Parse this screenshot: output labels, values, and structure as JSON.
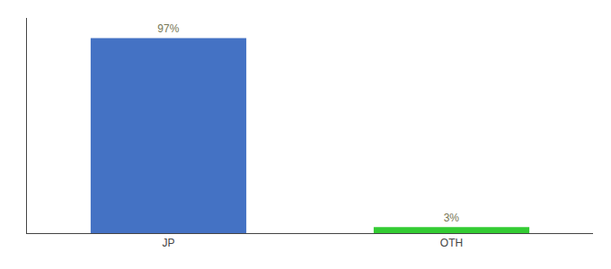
{
  "chart_data": {
    "type": "bar",
    "categories": [
      "JP",
      "OTH"
    ],
    "values": [
      97,
      3
    ],
    "value_labels": [
      "97%",
      "3%"
    ],
    "colors": [
      "#4472C4",
      "#33CC33"
    ],
    "ylim": [
      0,
      107
    ],
    "grid": false,
    "data_labels": true,
    "tick_labels": "x"
  }
}
